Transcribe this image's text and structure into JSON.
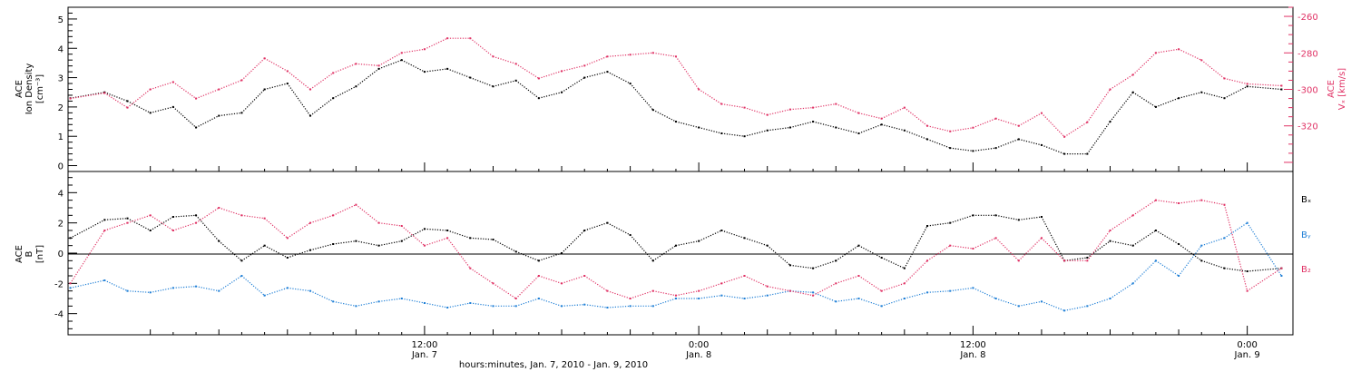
{
  "colors": {
    "black": "#000000",
    "red": "#e03265",
    "blue": "#1f7fd6"
  },
  "chart_data": [
    {
      "type": "scatter",
      "left_ylabel_1": "ACE",
      "left_ylabel_2": "Ion Density",
      "left_ylabel_unit": "[cm⁻³]",
      "right_ylabel_1": "ACE",
      "right_ylabel_2": "Vₓ [km/s]",
      "ylim_left": [
        -0.2,
        5.4
      ],
      "ylim_right": [
        -345,
        -255
      ],
      "yticks_left": [
        "0",
        "1",
        "2",
        "3",
        "4",
        "5"
      ],
      "yticks_right": [
        "-260",
        "-280",
        "-300",
        "-320"
      ],
      "xlim_hours": [
        -3.6,
        50
      ],
      "series": [
        {
          "axis": "left",
          "color": "black",
          "x": [
            -3.5,
            -2,
            -1,
            0,
            1,
            2,
            3,
            4,
            5,
            6,
            7,
            8,
            9,
            10,
            11,
            12,
            13,
            14,
            15,
            16,
            17,
            18,
            19,
            20,
            21,
            22,
            23,
            24,
            25,
            26,
            27,
            28,
            29,
            30,
            31,
            32,
            33,
            34,
            35,
            36,
            37,
            38,
            39,
            40,
            41,
            42,
            43,
            44,
            45,
            46,
            47,
            48,
            49.5
          ],
          "y": [
            2.3,
            2.5,
            2.2,
            1.8,
            2.0,
            1.3,
            1.7,
            1.8,
            2.6,
            2.8,
            1.7,
            2.3,
            2.7,
            3.3,
            3.6,
            3.2,
            3.3,
            3.0,
            2.7,
            2.9,
            2.3,
            2.5,
            3.0,
            3.2,
            2.8,
            1.9,
            1.5,
            1.3,
            1.1,
            1.0,
            1.2,
            1.3,
            1.5,
            1.3,
            1.1,
            1.4,
            1.2,
            0.9,
            0.6,
            0.5,
            0.6,
            0.9,
            0.7,
            0.4,
            0.4,
            1.5,
            2.5,
            2.0,
            2.3,
            2.5,
            2.3,
            2.7,
            2.6
          ]
        },
        {
          "axis": "right",
          "color": "red",
          "x": [
            -3.5,
            -2,
            -1,
            0,
            1,
            2,
            3,
            4,
            5,
            6,
            7,
            8,
            9,
            10,
            11,
            12,
            13,
            14,
            15,
            16,
            17,
            18,
            19,
            20,
            21,
            22,
            23,
            24,
            25,
            26,
            27,
            28,
            29,
            30,
            31,
            32,
            33,
            34,
            35,
            36,
            37,
            38,
            39,
            40,
            41,
            42,
            43,
            44,
            45,
            46,
            47,
            48,
            49.5
          ],
          "y": [
            -305,
            -302,
            -310,
            -300,
            -296,
            -305,
            -300,
            -295,
            -283,
            -290,
            -300,
            -291,
            -286,
            -287,
            -280,
            -278,
            -272,
            -272,
            -282,
            -286,
            -294,
            -290,
            -287,
            -282,
            -281,
            -280,
            -282,
            -300,
            -308,
            -310,
            -314,
            -311,
            -310,
            -308,
            -313,
            -316,
            -310,
            -320,
            -323,
            -321,
            -316,
            -320,
            -313,
            -326,
            -318,
            -300,
            -292,
            -280,
            -278,
            -284,
            -294,
            -297,
            -298
          ]
        }
      ],
      "series_sparse_extra": []
    },
    {
      "type": "scatter",
      "ylabel_1": "ACE",
      "ylabel_2": "B",
      "ylabel_unit": "[nT]",
      "ylim": [
        -5.4,
        5.4
      ],
      "yticks": [
        "4",
        "2",
        "0",
        "-2",
        "-4"
      ],
      "legend_position": "right",
      "legend": [
        {
          "label": "Bₓ",
          "color": "black"
        },
        {
          "label": "Bᵧ",
          "color": "blue"
        },
        {
          "label": "B₂",
          "color": "red"
        }
      ],
      "series": [
        {
          "name": "Bx",
          "color": "black",
          "x": [
            -3.5,
            -2,
            -1,
            0,
            1,
            2,
            3,
            4,
            5,
            6,
            7,
            8,
            9,
            10,
            11,
            12,
            13,
            14,
            15,
            16,
            17,
            18,
            19,
            20,
            21,
            22,
            23,
            24,
            25,
            26,
            27,
            28,
            29,
            30,
            31,
            32,
            33,
            34,
            35,
            36,
            37,
            38,
            39,
            40,
            41,
            42,
            43,
            44,
            45,
            46,
            47,
            48,
            49.5
          ],
          "y": [
            1,
            2.2,
            2.3,
            1.5,
            2.4,
            2.5,
            0.8,
            -0.5,
            0.5,
            -0.3,
            0.2,
            0.6,
            0.8,
            0.5,
            0.8,
            1.6,
            1.5,
            1.0,
            0.9,
            0.1,
            -0.5,
            0.0,
            1.5,
            2.0,
            1.2,
            -0.5,
            0.5,
            0.8,
            1.5,
            1.0,
            0.5,
            -0.8,
            -1.0,
            -0.5,
            0.5,
            -0.3,
            -1.0,
            1.8,
            2.0,
            2.5,
            2.5,
            2.2,
            2.4,
            -0.5,
            -0.3,
            0.8,
            0.5,
            1.5,
            0.6,
            -0.5,
            -1.0,
            -1.2,
            -1.0
          ]
        },
        {
          "name": "By",
          "color": "blue",
          "x": [
            -3.5,
            -2,
            -1,
            0,
            1,
            2,
            3,
            4,
            5,
            6,
            7,
            8,
            9,
            10,
            11,
            12,
            13,
            14,
            15,
            16,
            17,
            18,
            19,
            20,
            21,
            22,
            23,
            24,
            25,
            26,
            27,
            28,
            29,
            30,
            31,
            32,
            33,
            34,
            35,
            36,
            37,
            38,
            39,
            40,
            41,
            42,
            43,
            44,
            45,
            46,
            47,
            48,
            49.5
          ],
          "y": [
            -2.3,
            -1.8,
            -2.5,
            -2.6,
            -2.3,
            -2.2,
            -2.5,
            -1.5,
            -2.8,
            -2.3,
            -2.5,
            -3.2,
            -3.5,
            -3.2,
            -3.0,
            -3.3,
            -3.6,
            -3.3,
            -3.5,
            -3.5,
            -3.0,
            -3.5,
            -3.4,
            -3.6,
            -3.5,
            -3.5,
            -3.0,
            -3.0,
            -2.8,
            -3.0,
            -2.8,
            -2.5,
            -2.6,
            -3.2,
            -3.0,
            -3.5,
            -3.0,
            -2.6,
            -2.5,
            -2.3,
            -3.0,
            -3.5,
            -3.2,
            -3.8,
            -3.5,
            -3.0,
            -2.0,
            -0.5,
            -1.5,
            0.5,
            1.0,
            2.0,
            -1.5
          ]
        },
        {
          "name": "Bz",
          "color": "red",
          "x": [
            -3.5,
            -2,
            -1,
            0,
            1,
            2,
            3,
            4,
            5,
            6,
            7,
            8,
            9,
            10,
            11,
            12,
            13,
            14,
            15,
            16,
            17,
            18,
            19,
            20,
            21,
            22,
            23,
            24,
            25,
            26,
            27,
            28,
            29,
            30,
            31,
            32,
            33,
            34,
            35,
            36,
            37,
            38,
            39,
            40,
            41,
            42,
            43,
            44,
            45,
            46,
            47,
            48,
            49.5
          ],
          "y": [
            -2.0,
            1.5,
            2.0,
            2.5,
            1.5,
            2.0,
            3.0,
            2.5,
            2.3,
            1.0,
            2.0,
            2.5,
            3.2,
            2.0,
            1.8,
            0.5,
            1.0,
            -1.0,
            -2.0,
            -3.0,
            -1.5,
            -2.0,
            -1.5,
            -2.5,
            -3.0,
            -2.5,
            -2.8,
            -2.5,
            -2.0,
            -1.5,
            -2.2,
            -2.5,
            -2.8,
            -2.0,
            -1.5,
            -2.5,
            -2.0,
            -0.5,
            0.5,
            0.3,
            1.0,
            -0.5,
            1.0,
            -0.5,
            -0.5,
            1.5,
            2.5,
            3.5,
            3.3,
            3.5,
            3.2,
            -2.5,
            -1.0
          ]
        }
      ]
    }
  ],
  "x_axis": {
    "tick_times": [
      "12:00",
      "0:00",
      "12:00",
      "0:00"
    ],
    "tick_dates": [
      "Jan. 7",
      "Jan. 8",
      "Jan. 8",
      "Jan. 9"
    ],
    "tick_hours": [
      12,
      24,
      36,
      48
    ],
    "xlabel": "hours:minutes, Jan.  7, 2010 - Jan.  9, 2010"
  }
}
